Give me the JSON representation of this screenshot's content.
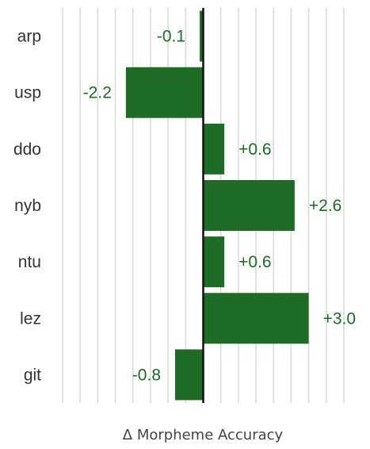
{
  "chart_data": {
    "type": "bar",
    "orientation": "horizontal",
    "categories": [
      "arp",
      "usp",
      "ddo",
      "nyb",
      "ntu",
      "lez",
      "git"
    ],
    "values": [
      -0.1,
      -2.2,
      0.6,
      2.6,
      0.6,
      3.0,
      -0.8
    ],
    "data_labels": [
      "-0.1",
      "-2.2",
      "+0.6",
      "+2.6",
      "+0.6",
      "+3.0",
      "-0.8"
    ],
    "title": "",
    "xlabel": "Δ Morpheme Accuracy",
    "ylabel": "",
    "xlim": [
      -4.0,
      4.0
    ],
    "grid": true,
    "legend": "none",
    "colors": {
      "bar": "#1e6b25",
      "label": "#1e6b25",
      "category": "#333333",
      "grid": "#d9d9d9",
      "zero_axis": "#111111"
    }
  }
}
